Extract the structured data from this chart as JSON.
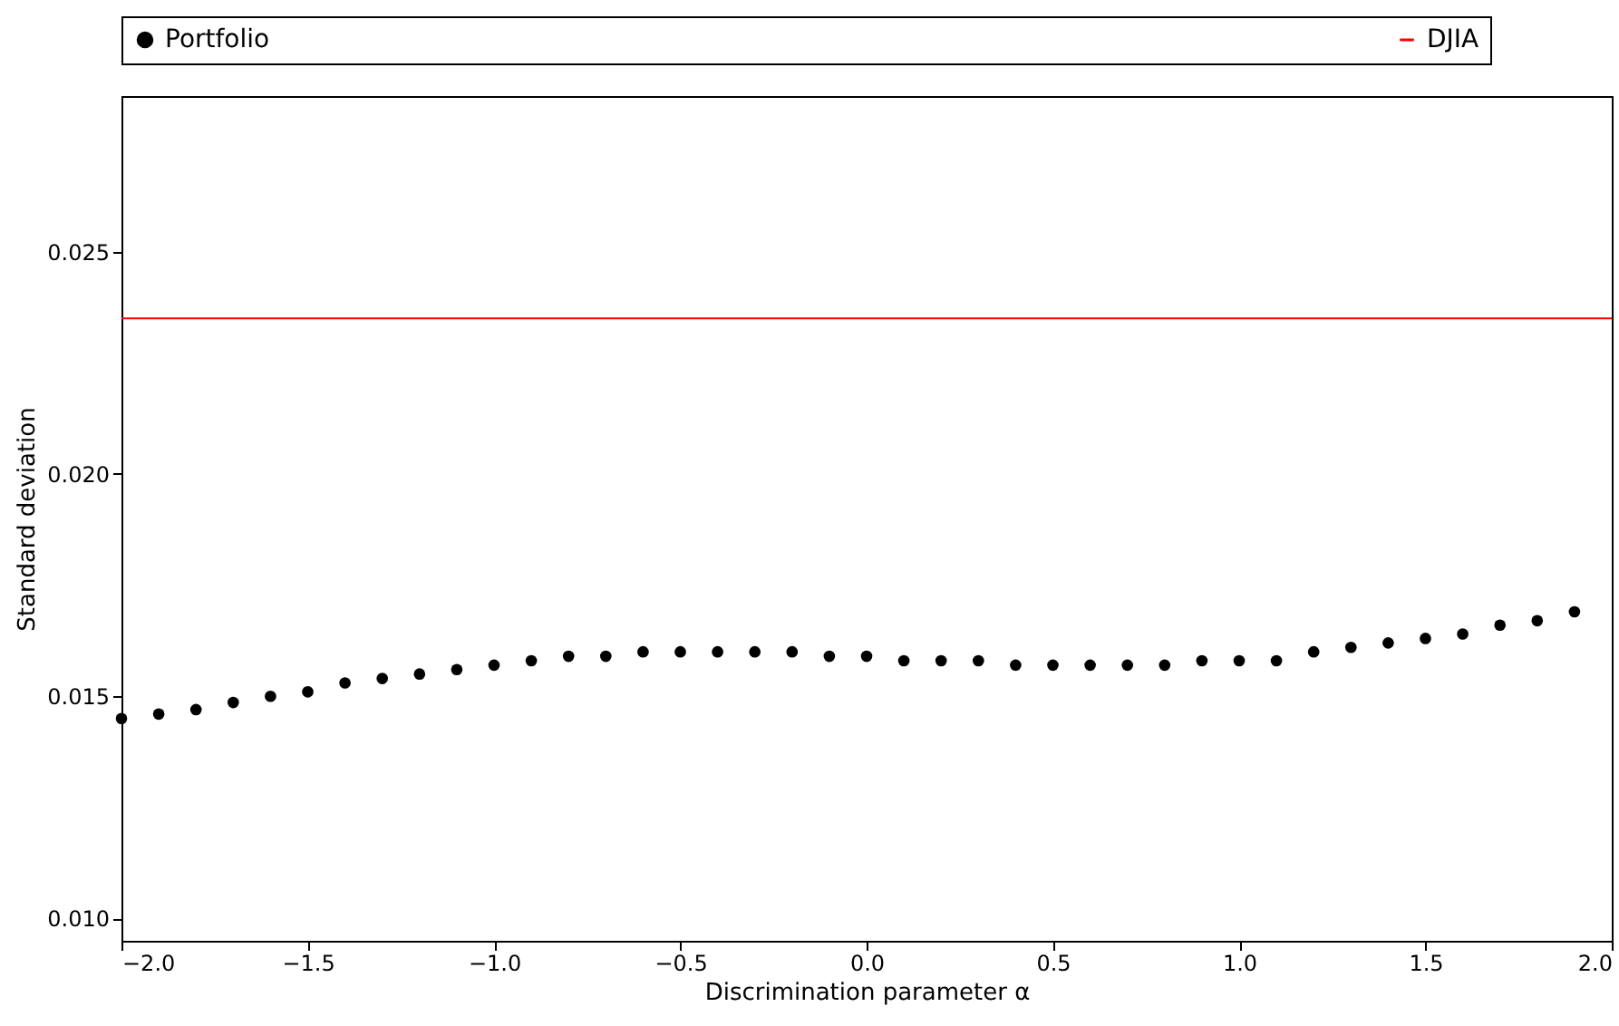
{
  "chart_data": {
    "type": "scatter",
    "xlabel": "Discrimination parameter  α",
    "ylabel": "Standard deviation",
    "x": [
      -2.0,
      -1.9,
      -1.8,
      -1.7,
      -1.6,
      -1.5,
      -1.4,
      -1.3,
      -1.2,
      -1.1,
      -1.0,
      -0.9,
      -0.8,
      -0.7,
      -0.6,
      -0.5,
      -0.4,
      -0.3,
      -0.2,
      -0.1,
      0.0,
      0.1,
      0.2,
      0.3,
      0.4,
      0.5,
      0.6,
      0.7,
      0.8,
      0.9,
      1.0,
      1.1,
      1.2,
      1.3,
      1.4,
      1.5,
      1.6,
      1.7,
      1.8,
      1.9
    ],
    "series": [
      {
        "name": "Portfolio",
        "color": "#000000",
        "values": [
          0.0145,
          0.0146,
          0.0147,
          0.01486,
          0.015,
          0.0151,
          0.0153,
          0.0154,
          0.0155,
          0.0156,
          0.0157,
          0.0158,
          0.0159,
          0.0159,
          0.016,
          0.016,
          0.016,
          0.016,
          0.016,
          0.0159,
          0.0159,
          0.0158,
          0.0158,
          0.0158,
          0.0157,
          0.0157,
          0.0157,
          0.0157,
          0.0157,
          0.0158,
          0.0158,
          0.0158,
          0.016,
          0.0161,
          0.0162,
          0.0163,
          0.0164,
          0.0166,
          0.0167,
          0.0169
        ]
      }
    ],
    "ref_lines": [
      {
        "axis": "y",
        "value": 0.0235,
        "label": "DJIA",
        "color": "#ff0000"
      }
    ],
    "xlim": [
      -2.0,
      2.0
    ],
    "ylim": [
      0.0095,
      0.0285
    ],
    "xticks": [
      {
        "value": -2,
        "label": "−2.0"
      },
      {
        "value": -1.5,
        "label": "−1.5"
      },
      {
        "value": -1,
        "label": "−1.0"
      },
      {
        "value": -0.5,
        "label": "−0.5"
      },
      {
        "value": 0,
        "label": "0.0"
      },
      {
        "value": 0.5,
        "label": "0.5"
      },
      {
        "value": 1,
        "label": "1.0"
      },
      {
        "value": 1.5,
        "label": "1.5"
      },
      {
        "value": 2,
        "label": "2.0"
      }
    ],
    "yticks": [
      {
        "value": 0.01,
        "label": "0.010"
      },
      {
        "value": 0.015,
        "label": "0.015"
      },
      {
        "value": 0.02,
        "label": "0.020"
      },
      {
        "value": 0.025,
        "label": "0.025"
      }
    ],
    "marker": "circle",
    "legend": "top",
    "grid": false
  }
}
